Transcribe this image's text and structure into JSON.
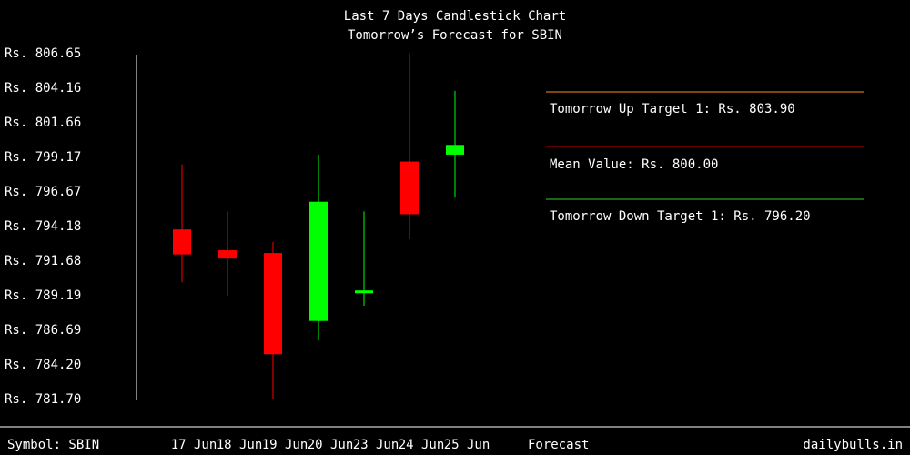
{
  "chart_data": {
    "type": "candlestick",
    "title": "Last 7 Days Candlestick Chart",
    "subtitle": "Tomorrow’s Forecast for SBIN",
    "y_ticks": [
      "Rs. 806.65",
      "Rs. 804.16",
      "Rs. 801.66",
      "Rs. 799.17",
      "Rs. 796.67",
      "Rs. 794.18",
      "Rs. 791.68",
      "Rs. 789.19",
      "Rs. 786.69",
      "Rs. 784.20",
      "Rs. 781.70"
    ],
    "ylim": [
      781.7,
      806.65
    ],
    "categories": [
      "17 Jun",
      "18 Jun",
      "19 Jun",
      "20 Jun",
      "23 Jun",
      "24 Jun",
      "25 Jun"
    ],
    "candles": [
      {
        "date": "17 Jun",
        "open": 793.9,
        "high": 798.6,
        "low": 790.1,
        "close": 792.1
      },
      {
        "date": "18 Jun",
        "open": 792.4,
        "high": 795.2,
        "low": 789.1,
        "close": 791.8
      },
      {
        "date": "19 Jun",
        "open": 792.2,
        "high": 793.0,
        "low": 781.7,
        "close": 784.9
      },
      {
        "date": "20 Jun",
        "open": 787.3,
        "high": 799.3,
        "low": 785.9,
        "close": 795.9
      },
      {
        "date": "23 Jun",
        "open": 789.3,
        "high": 795.2,
        "low": 788.4,
        "close": 789.5
      },
      {
        "date": "24 Jun",
        "open": 798.8,
        "high": 806.6,
        "low": 793.2,
        "close": 795.0
      },
      {
        "date": "25 Jun",
        "open": 799.3,
        "high": 803.9,
        "low": 796.2,
        "close": 800.0
      }
    ],
    "colors": {
      "up": "#00ff00",
      "down": "#ff0000",
      "up_target_line": "#ff8c1a",
      "mean_line": "#cc0000",
      "down_target_line": "#33cc33"
    },
    "forecast": {
      "up_target_label": "Tomorrow Up Target 1: Rs. 803.90",
      "mean_label": "Mean Value: Rs. 800.00",
      "down_target_label": "Tomorrow Down Target 1: Rs. 796.20"
    }
  },
  "footer": {
    "symbol": "Symbol: SBIN",
    "forecast_label": "Forecast",
    "site": "dailybulls.in"
  }
}
